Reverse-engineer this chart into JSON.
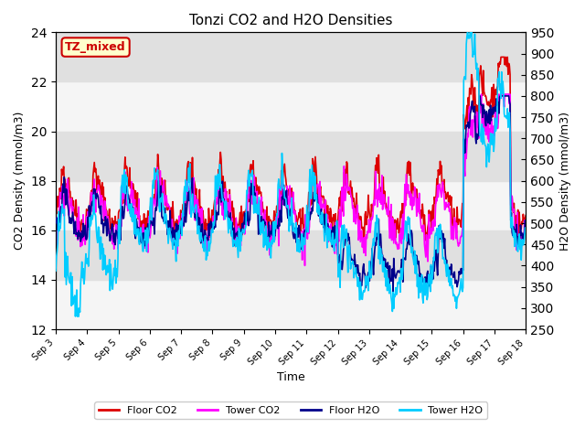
{
  "title": "Tonzi CO2 and H2O Densities",
  "xlabel": "Time",
  "ylabel_left": "CO2 Density (mmol/m3)",
  "ylabel_right": "H2O Density (mmol/m3)",
  "co2_ylim": [
    12,
    24
  ],
  "h2o_ylim": [
    250,
    950
  ],
  "co2_yticks": [
    12,
    14,
    16,
    18,
    20,
    22,
    24
  ],
  "h2o_yticks": [
    250,
    300,
    350,
    400,
    450,
    500,
    550,
    600,
    650,
    700,
    750,
    800,
    850,
    900,
    950
  ],
  "xtick_labels": [
    "Sep 3",
    "Sep 4",
    "Sep 5",
    "Sep 6",
    "Sep 7",
    "Sep 8",
    "Sep 9",
    "Sep 10",
    "Sep 11",
    "Sep 12",
    "Sep 13",
    "Sep 14",
    "Sep 15",
    "Sep 16",
    "Sep 17",
    "Sep 18"
  ],
  "legend_labels": [
    "Floor CO2",
    "Tower CO2",
    "Floor H2O",
    "Tower H2O"
  ],
  "legend_colors": [
    "#dd0000",
    "#ff00ff",
    "#00008b",
    "#00ccff"
  ],
  "floor_co2_color": "#dd0000",
  "tower_co2_color": "#ff00ff",
  "floor_h2o_color": "#00008b",
  "tower_h2o_color": "#00ccff",
  "tz_label": "TZ_mixed",
  "tz_text_color": "#cc0000",
  "tz_bg_color": "#ffffcc",
  "tz_border_color": "#cc0000",
  "bg_bands": [
    {
      "ymin": 14,
      "ymax": 16,
      "color": "#e0e0e0"
    },
    {
      "ymin": 18,
      "ymax": 20,
      "color": "#e0e0e0"
    },
    {
      "ymin": 22,
      "ymax": 24,
      "color": "#e0e0e0"
    }
  ],
  "n_days": 15,
  "pts_per_day": 48
}
